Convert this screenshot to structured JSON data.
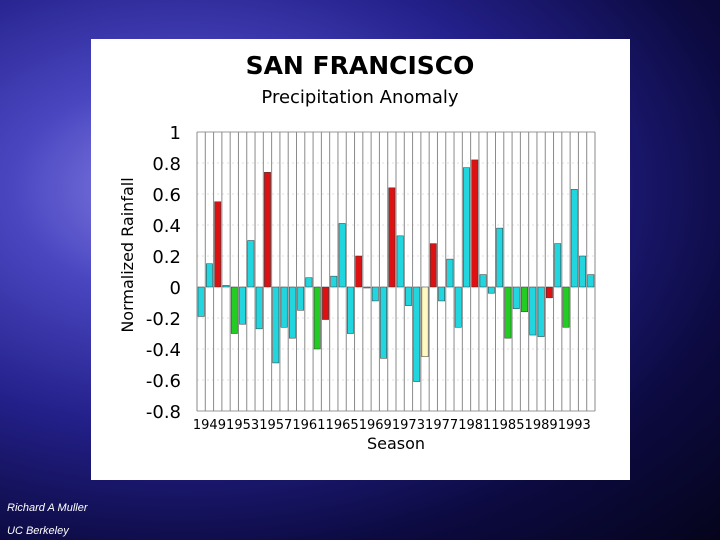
{
  "credits": {
    "author": "Richard A Muller",
    "institution": "UC Berkeley"
  },
  "colors": {
    "cyan": "#22d6df",
    "red": "#dd1111",
    "green": "#22cc22",
    "yellow": "#fff8c0"
  },
  "chart_data": {
    "type": "bar",
    "title": "SAN FRANCISCO",
    "subtitle": "Precipitation Anomaly",
    "xlabel": "Season",
    "ylabel": "Normalized Rainfall",
    "ylim": [
      -0.8,
      1
    ],
    "yticks": [
      "1",
      "0.8",
      "0.6",
      "0.4",
      "0.2",
      "0",
      "-0.2",
      "-0.4",
      "-0.6",
      "-0.8"
    ],
    "xtick_labels": [
      "1949",
      "1953",
      "1957",
      "1961",
      "1965",
      "1969",
      "1973",
      "1977",
      "1981",
      "1985",
      "1989",
      "1993"
    ],
    "x": [
      1948,
      1949,
      1950,
      1951,
      1952,
      1953,
      1954,
      1955,
      1956,
      1957,
      1958,
      1959,
      1960,
      1961,
      1962,
      1963,
      1964,
      1965,
      1966,
      1967,
      1968,
      1969,
      1970,
      1971,
      1972,
      1973,
      1974,
      1975,
      1976,
      1977,
      1978,
      1979,
      1980,
      1981,
      1982,
      1983,
      1984,
      1985,
      1986,
      1987,
      1988,
      1989,
      1990,
      1991,
      1992,
      1993,
      1994,
      1995
    ],
    "values": [
      -0.19,
      0.15,
      0.55,
      0.01,
      -0.3,
      -0.24,
      0.3,
      -0.27,
      0.74,
      -0.49,
      -0.26,
      -0.33,
      -0.15,
      0.06,
      -0.4,
      -0.21,
      0.07,
      0.41,
      -0.3,
      0.2,
      0.0,
      -0.09,
      -0.46,
      0.64,
      0.33,
      -0.12,
      -0.61,
      -0.45,
      0.28,
      -0.09,
      0.18,
      -0.26,
      0.77,
      0.82,
      0.08,
      -0.04,
      0.38,
      -0.33,
      -0.14,
      -0.16,
      -0.31,
      -0.32,
      -0.07,
      0.28,
      -0.26,
      0.63,
      0.2,
      0.08
    ],
    "bar_colors": [
      "cyan",
      "cyan",
      "red",
      "cyan",
      "green",
      "cyan",
      "cyan",
      "cyan",
      "red",
      "cyan",
      "cyan",
      "cyan",
      "cyan",
      "cyan",
      "green",
      "red",
      "cyan",
      "cyan",
      "cyan",
      "red",
      "cyan",
      "cyan",
      "cyan",
      "red",
      "cyan",
      "cyan",
      "cyan",
      "yellow",
      "red",
      "cyan",
      "cyan",
      "cyan",
      "cyan",
      "red",
      "cyan",
      "cyan",
      "cyan",
      "green",
      "cyan",
      "green",
      "cyan",
      "cyan",
      "red",
      "cyan",
      "green",
      "cyan",
      "cyan",
      "cyan"
    ],
    "grid": true,
    "legend": "none"
  }
}
